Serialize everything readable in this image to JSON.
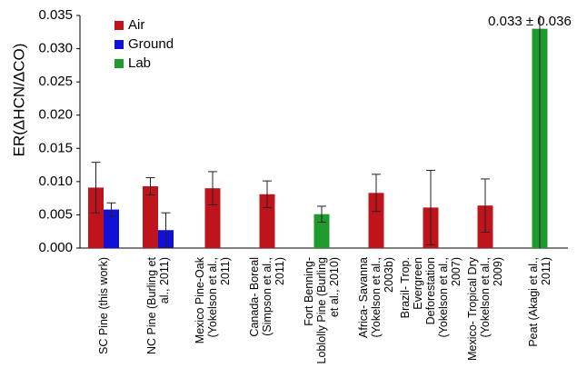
{
  "chart_data": {
    "type": "bar",
    "y_label": "ER(ΔHCN/ΔCO)",
    "categories": [
      "SC Pine (this work)",
      "NC Pine (Burling et al., 2011)",
      "Mexico Pine-Oak (Yokelson et al., 2011)",
      "Canada- Boreal (Simpson et al., 2011)",
      "Fort Benning- Loblolly Pine (Burling et al., 2010)",
      "Africa- Savanna (Yokelson et al., 2003b)",
      "Brazil- Trop. Evergreen Deforestation (Yokelson et al., 2007)",
      "Mexico- Tropical Dry (Yokelson et al., 2009)",
      "Peat (Akagi et al., 2011)"
    ],
    "series": [
      {
        "name": "Air",
        "color": "#c0141c",
        "values": [
          0.0091,
          0.0093,
          0.009,
          0.0081,
          null,
          0.0083,
          0.0061,
          0.0064,
          null
        ],
        "errors": [
          0.0038,
          0.0013,
          0.0025,
          0.002,
          null,
          0.0028,
          0.0056,
          0.004,
          null
        ]
      },
      {
        "name": "Ground",
        "color": "#1010d8",
        "values": [
          0.0058,
          0.0027,
          null,
          null,
          null,
          null,
          null,
          null,
          null
        ],
        "errors": [
          0.001,
          0.0026,
          null,
          null,
          null,
          null,
          null,
          null,
          null
        ]
      },
      {
        "name": "Lab",
        "color": "#1f9a2e",
        "values": [
          null,
          null,
          null,
          null,
          0.0051,
          null,
          null,
          null,
          0.033
        ],
        "errors": [
          null,
          null,
          null,
          null,
          0.0012,
          null,
          null,
          null,
          0.036
        ],
        "value_labels": [
          null,
          null,
          null,
          null,
          null,
          null,
          null,
          null,
          "0.033 ± 0.036"
        ]
      }
    ],
    "ylim": [
      0,
      0.035
    ],
    "yticks": [
      {
        "value": 0,
        "label": "0.000"
      },
      {
        "value": 0.005,
        "label": "0.005"
      },
      {
        "value": 0.01,
        "label": "0.010"
      },
      {
        "value": 0.015,
        "label": "0.015"
      },
      {
        "value": 0.02,
        "label": "0.020"
      },
      {
        "value": 0.025,
        "label": "0.025"
      },
      {
        "value": 0.03,
        "label": "0.030"
      },
      {
        "value": 0.035,
        "label": "0.035"
      }
    ],
    "legend": "upper-left"
  }
}
